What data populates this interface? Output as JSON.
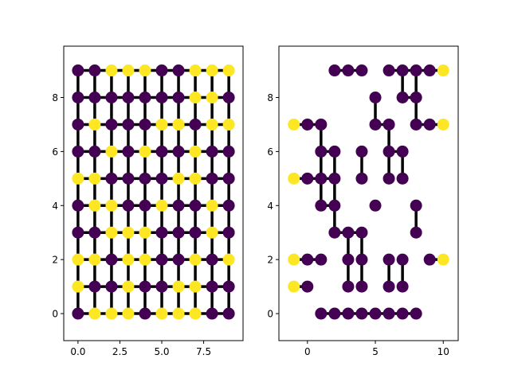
{
  "colors": {
    "yellow": "#fde725",
    "purple": "#440154",
    "edge": "#000000"
  },
  "chart_data": [
    {
      "type": "scatter",
      "title": "",
      "xlabel": "",
      "ylabel": "",
      "xlim": [
        -0.85,
        9.85
      ],
      "ylim": [
        -1,
        9.9
      ],
      "grid": false,
      "xticks": [
        0,
        2.5,
        5,
        7.5
      ],
      "xtick_labels": [
        "0.0",
        "2.5",
        "5.0",
        "7.5"
      ],
      "yticks": [
        0,
        2,
        4,
        6,
        8
      ],
      "ytick_labels": [
        "0",
        "2",
        "4",
        "6",
        "8"
      ],
      "grid_size": [
        10,
        10
      ],
      "node_values_by_row": [
        [
          0,
          1,
          1,
          1,
          0,
          1,
          1,
          1,
          0,
          0
        ],
        [
          1,
          0,
          0,
          1,
          0,
          0,
          1,
          1,
          0,
          0
        ],
        [
          1,
          1,
          0,
          1,
          1,
          0,
          0,
          1,
          0,
          1
        ],
        [
          0,
          0,
          1,
          1,
          1,
          0,
          0,
          0,
          1,
          0
        ],
        [
          0,
          1,
          1,
          0,
          0,
          1,
          0,
          0,
          1,
          0
        ],
        [
          1,
          1,
          0,
          0,
          0,
          0,
          1,
          1,
          0,
          0
        ],
        [
          0,
          0,
          1,
          0,
          1,
          0,
          0,
          1,
          0,
          0
        ],
        [
          0,
          1,
          0,
          0,
          0,
          1,
          1,
          0,
          1,
          1
        ],
        [
          0,
          0,
          0,
          0,
          0,
          0,
          0,
          1,
          1,
          0
        ],
        [
          0,
          0,
          1,
          1,
          1,
          0,
          0,
          1,
          1,
          1
        ]
      ],
      "edges": "all horizontal and vertical neighbours in the 10x10 grid"
    },
    {
      "type": "scatter",
      "title": "",
      "xlabel": "",
      "ylabel": "",
      "xlim": [
        -2.1,
        11.1
      ],
      "ylim": [
        -1,
        9.9
      ],
      "grid": false,
      "xticks": [
        0,
        5,
        10
      ],
      "xtick_labels": [
        "0",
        "5",
        "10"
      ],
      "yticks": [
        0,
        2,
        4,
        6,
        8
      ],
      "ytick_labels": [
        "0",
        "2",
        "4",
        "6",
        "8"
      ],
      "nodes": [
        {
          "x": 1,
          "y": 0,
          "v": 0
        },
        {
          "x": 2,
          "y": 0,
          "v": 0
        },
        {
          "x": 3,
          "y": 0,
          "v": 0
        },
        {
          "x": 4,
          "y": 0,
          "v": 0
        },
        {
          "x": 5,
          "y": 0,
          "v": 0
        },
        {
          "x": 6,
          "y": 0,
          "v": 0
        },
        {
          "x": 7,
          "y": 0,
          "v": 0
        },
        {
          "x": 8,
          "y": 0,
          "v": 0
        },
        {
          "x": -1,
          "y": 1,
          "v": 1
        },
        {
          "x": 0,
          "y": 1,
          "v": 0
        },
        {
          "x": 3,
          "y": 1,
          "v": 0
        },
        {
          "x": 4,
          "y": 1,
          "v": 0
        },
        {
          "x": 6,
          "y": 1,
          "v": 0
        },
        {
          "x": 7,
          "y": 1,
          "v": 0
        },
        {
          "x": -1,
          "y": 2,
          "v": 1
        },
        {
          "x": 0,
          "y": 2,
          "v": 0
        },
        {
          "x": 1,
          "y": 2,
          "v": 0
        },
        {
          "x": 3,
          "y": 2,
          "v": 0
        },
        {
          "x": 4,
          "y": 2,
          "v": 0
        },
        {
          "x": 6,
          "y": 2,
          "v": 0
        },
        {
          "x": 7,
          "y": 2,
          "v": 0
        },
        {
          "x": 9,
          "y": 2,
          "v": 0
        },
        {
          "x": 10,
          "y": 2,
          "v": 1
        },
        {
          "x": 2,
          "y": 3,
          "v": 0
        },
        {
          "x": 3,
          "y": 3,
          "v": 0
        },
        {
          "x": 4,
          "y": 3,
          "v": 0
        },
        {
          "x": 8,
          "y": 3,
          "v": 0
        },
        {
          "x": 1,
          "y": 4,
          "v": 0
        },
        {
          "x": 2,
          "y": 4,
          "v": 0
        },
        {
          "x": 5,
          "y": 4,
          "v": 0
        },
        {
          "x": 8,
          "y": 4,
          "v": 0
        },
        {
          "x": -1,
          "y": 5,
          "v": 1
        },
        {
          "x": 0,
          "y": 5,
          "v": 0
        },
        {
          "x": 1,
          "y": 5,
          "v": 0
        },
        {
          "x": 2,
          "y": 5,
          "v": 0
        },
        {
          "x": 4,
          "y": 5,
          "v": 0
        },
        {
          "x": 6,
          "y": 5,
          "v": 0
        },
        {
          "x": 7,
          "y": 5,
          "v": 0
        },
        {
          "x": 1,
          "y": 6,
          "v": 0
        },
        {
          "x": 2,
          "y": 6,
          "v": 0
        },
        {
          "x": 4,
          "y": 6,
          "v": 0
        },
        {
          "x": 6,
          "y": 6,
          "v": 0
        },
        {
          "x": 7,
          "y": 6,
          "v": 0
        },
        {
          "x": -1,
          "y": 7,
          "v": 1
        },
        {
          "x": 0,
          "y": 7,
          "v": 0
        },
        {
          "x": 1,
          "y": 7,
          "v": 0
        },
        {
          "x": 5,
          "y": 7,
          "v": 0
        },
        {
          "x": 6,
          "y": 7,
          "v": 0
        },
        {
          "x": 8,
          "y": 7,
          "v": 0
        },
        {
          "x": 9,
          "y": 7,
          "v": 0
        },
        {
          "x": 10,
          "y": 7,
          "v": 1
        },
        {
          "x": 5,
          "y": 8,
          "v": 0
        },
        {
          "x": 7,
          "y": 8,
          "v": 0
        },
        {
          "x": 8,
          "y": 8,
          "v": 0
        },
        {
          "x": 2,
          "y": 9,
          "v": 0
        },
        {
          "x": 3,
          "y": 9,
          "v": 0
        },
        {
          "x": 4,
          "y": 9,
          "v": 0
        },
        {
          "x": 6,
          "y": 9,
          "v": 0
        },
        {
          "x": 7,
          "y": 9,
          "v": 0
        },
        {
          "x": 8,
          "y": 9,
          "v": 0
        },
        {
          "x": 9,
          "y": 9,
          "v": 0
        },
        {
          "x": 10,
          "y": 9,
          "v": 1
        }
      ],
      "edges": [
        [
          [
            1,
            0
          ],
          [
            8,
            0
          ]
        ],
        [
          [
            -1,
            1
          ],
          [
            0,
            1
          ]
        ],
        [
          [
            3,
            1
          ],
          [
            3,
            3
          ]
        ],
        [
          [
            4,
            1
          ],
          [
            4,
            3
          ]
        ],
        [
          [
            6,
            1
          ],
          [
            6,
            2
          ]
        ],
        [
          [
            7,
            1
          ],
          [
            7,
            2
          ]
        ],
        [
          [
            -1,
            2
          ],
          [
            1,
            2
          ]
        ],
        [
          [
            9,
            2
          ],
          [
            10,
            2
          ]
        ],
        [
          [
            2,
            3
          ],
          [
            4,
            3
          ]
        ],
        [
          [
            2,
            3
          ],
          [
            2,
            6
          ]
        ],
        [
          [
            8,
            3
          ],
          [
            8,
            4
          ]
        ],
        [
          [
            1,
            4
          ],
          [
            1,
            7
          ]
        ],
        [
          [
            1,
            4
          ],
          [
            2,
            4
          ]
        ],
        [
          [
            -1,
            5
          ],
          [
            2,
            5
          ]
        ],
        [
          [
            4,
            5
          ],
          [
            4,
            6
          ]
        ],
        [
          [
            6,
            5
          ],
          [
            6,
            7
          ]
        ],
        [
          [
            7,
            5
          ],
          [
            7,
            6
          ]
        ],
        [
          [
            6,
            6
          ],
          [
            7,
            6
          ]
        ],
        [
          [
            1,
            6
          ],
          [
            2,
            6
          ]
        ],
        [
          [
            -1,
            7
          ],
          [
            1,
            7
          ]
        ],
        [
          [
            5,
            7
          ],
          [
            6,
            7
          ]
        ],
        [
          [
            5,
            7
          ],
          [
            5,
            8
          ]
        ],
        [
          [
            8,
            7
          ],
          [
            10,
            7
          ]
        ],
        [
          [
            8,
            7
          ],
          [
            8,
            9
          ]
        ],
        [
          [
            7,
            8
          ],
          [
            8,
            8
          ]
        ],
        [
          [
            7,
            8
          ],
          [
            7,
            9
          ]
        ],
        [
          [
            2,
            9
          ],
          [
            4,
            9
          ]
        ],
        [
          [
            6,
            9
          ],
          [
            10,
            9
          ]
        ]
      ]
    }
  ]
}
